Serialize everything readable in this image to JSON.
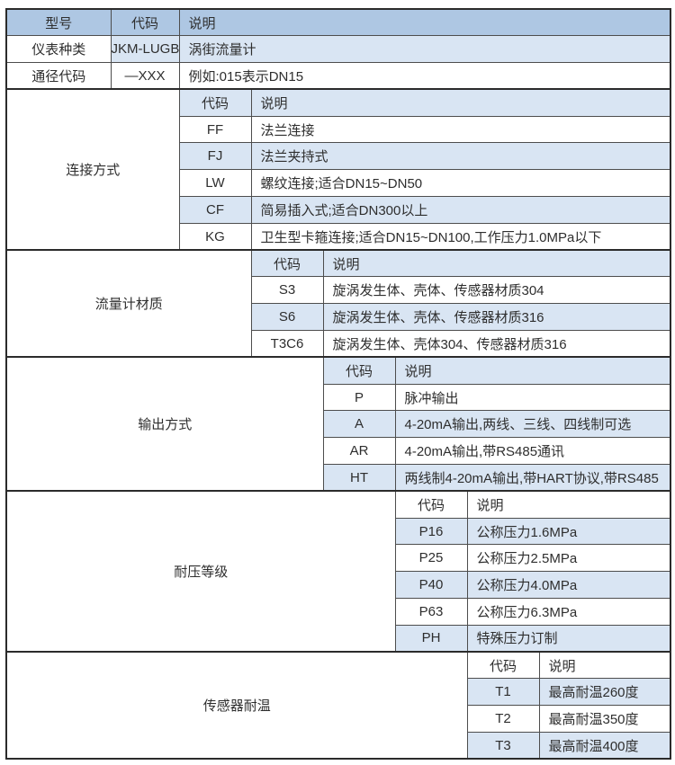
{
  "colors": {
    "page_bg": "#ffffff",
    "header_bg": "#aec7e3",
    "stripe_bg": "#d9e5f3",
    "white_bg": "#ffffff",
    "inner_border": "#4d4d4d",
    "outer_border": "#2b2b2b",
    "text_color": "#2e2e2e"
  },
  "table": {
    "header": {
      "model": "型号",
      "code": "代码",
      "desc": "说明"
    },
    "top_rows": [
      {
        "label": "仪表种类",
        "code": "JKM-LUGB",
        "desc": "涡街流量计"
      },
      {
        "label": "通径代码",
        "code": "—XXX",
        "desc": "例如:015表示DN15"
      }
    ],
    "sections": [
      {
        "label": "连接方式",
        "header": {
          "code": "代码",
          "desc": "说明"
        },
        "rows": [
          {
            "code": "FF",
            "desc": "法兰连接"
          },
          {
            "code": "FJ",
            "desc": "法兰夹持式"
          },
          {
            "code": "LW",
            "desc": "螺纹连接;适合DN15~DN50"
          },
          {
            "code": "CF",
            "desc": "简易插入式;适合DN300以上"
          },
          {
            "code": "KG",
            "desc": "卫生型卡箍连接;适合DN15~DN100,工作压力1.0MPa以下"
          }
        ]
      },
      {
        "label": "流量计材质",
        "header": {
          "code": "代码",
          "desc": "说明"
        },
        "rows": [
          {
            "code": "S3",
            "desc": "旋涡发生体、壳体、传感器材质304"
          },
          {
            "code": "S6",
            "desc": "旋涡发生体、壳体、传感器材质316"
          },
          {
            "code": "T3C6",
            "desc": "旋涡发生体、壳体304、传感器材质316"
          }
        ]
      },
      {
        "label": "输出方式",
        "header": {
          "code": "代码",
          "desc": "说明"
        },
        "rows": [
          {
            "code": "P",
            "desc": "脉冲输出"
          },
          {
            "code": "A",
            "desc": "4-20mA输出,两线、三线、四线制可选"
          },
          {
            "code": "AR",
            "desc": "4-20mA输出,带RS485通讯"
          },
          {
            "code": "HT",
            "desc": "两线制4-20mA输出,带HART协议,带RS485"
          }
        ]
      },
      {
        "label": "耐压等级",
        "header": {
          "code": "代码",
          "desc": "说明"
        },
        "rows": [
          {
            "code": "P16",
            "desc": "公称压力1.6MPa"
          },
          {
            "code": "P25",
            "desc": "公称压力2.5MPa"
          },
          {
            "code": "P40",
            "desc": "公称压力4.0MPa"
          },
          {
            "code": "P63",
            "desc": "公称压力6.3MPa"
          },
          {
            "code": "PH",
            "desc": "特殊压力订制"
          }
        ]
      },
      {
        "label": "传感器耐温",
        "header": {
          "code": "代码",
          "desc": "说明"
        },
        "rows": [
          {
            "code": "T1",
            "desc": "最高耐温260度"
          },
          {
            "code": "T2",
            "desc": "最高耐温350度"
          },
          {
            "code": "T3",
            "desc": "最高耐温400度"
          }
        ]
      }
    ]
  }
}
